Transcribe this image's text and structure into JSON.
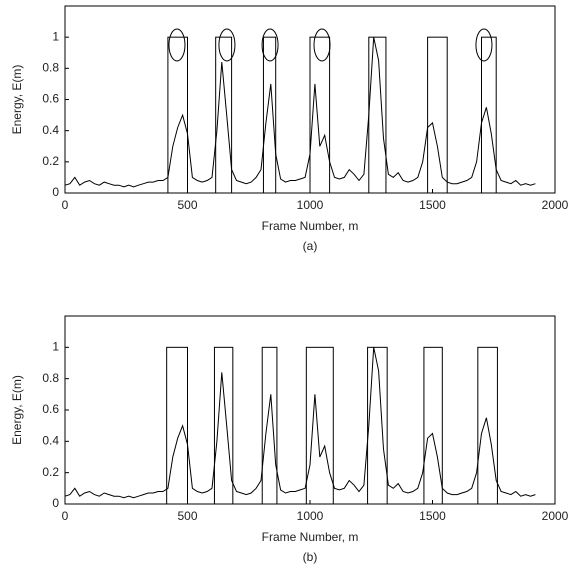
{
  "chart_data": [
    {
      "type": "line",
      "caption": "(a)",
      "xlabel": "Frame Number, m",
      "ylabel": "Energy, E(m)",
      "xlim": [
        0,
        2000
      ],
      "ylim": [
        0,
        1.2
      ],
      "xticks": [
        0,
        500,
        1000,
        1500,
        2000
      ],
      "yticks": [
        0,
        0.2,
        0.4,
        0.6,
        0.8,
        1
      ],
      "series": [
        {
          "color": "#000000",
          "x": [
            0,
            20,
            40,
            60,
            80,
            100,
            120,
            140,
            160,
            180,
            200,
            220,
            240,
            260,
            280,
            300,
            320,
            340,
            360,
            380,
            400,
            420,
            440,
            460,
            480,
            500,
            520,
            540,
            560,
            580,
            600,
            620,
            640,
            660,
            680,
            700,
            720,
            740,
            760,
            780,
            800,
            820,
            840,
            860,
            880,
            900,
            920,
            940,
            960,
            980,
            1000,
            1020,
            1040,
            1060,
            1080,
            1100,
            1120,
            1140,
            1160,
            1180,
            1200,
            1220,
            1240,
            1260,
            1280,
            1300,
            1320,
            1340,
            1360,
            1380,
            1400,
            1420,
            1440,
            1460,
            1480,
            1500,
            1520,
            1540,
            1560,
            1580,
            1600,
            1620,
            1640,
            1660,
            1680,
            1700,
            1720,
            1740,
            1760,
            1780,
            1800,
            1820,
            1840,
            1860,
            1880,
            1900,
            1920
          ],
          "values": [
            0.05,
            0.06,
            0.1,
            0.05,
            0.07,
            0.08,
            0.06,
            0.05,
            0.07,
            0.06,
            0.05,
            0.05,
            0.04,
            0.05,
            0.04,
            0.05,
            0.06,
            0.07,
            0.07,
            0.08,
            0.08,
            0.1,
            0.3,
            0.42,
            0.5,
            0.38,
            0.1,
            0.08,
            0.07,
            0.08,
            0.1,
            0.4,
            0.84,
            0.5,
            0.15,
            0.08,
            0.07,
            0.06,
            0.07,
            0.1,
            0.15,
            0.45,
            0.7,
            0.25,
            0.09,
            0.07,
            0.08,
            0.08,
            0.09,
            0.1,
            0.25,
            0.7,
            0.3,
            0.37,
            0.2,
            0.1,
            0.09,
            0.1,
            0.15,
            0.12,
            0.08,
            0.12,
            0.5,
            1.0,
            0.85,
            0.35,
            0.12,
            0.1,
            0.13,
            0.08,
            0.07,
            0.08,
            0.1,
            0.2,
            0.42,
            0.45,
            0.3,
            0.1,
            0.07,
            0.06,
            0.06,
            0.07,
            0.08,
            0.1,
            0.2,
            0.45,
            0.55,
            0.38,
            0.15,
            0.08,
            0.07,
            0.06,
            0.08,
            0.05,
            0.06,
            0.05,
            0.06
          ]
        }
      ],
      "windows": {
        "starts": [
          420,
          615,
          810,
          1000,
          1240,
          1480,
          1700
        ],
        "ends": [
          500,
          680,
          860,
          1080,
          1310,
          1560,
          1760
        ],
        "heights": [
          1,
          1,
          1,
          1,
          1,
          1,
          1
        ]
      },
      "circles": {
        "x": [
          457,
          661,
          837,
          1049,
          1710
        ],
        "y": [
          0.95,
          0.95,
          0.95,
          0.95,
          0.95
        ]
      }
    },
    {
      "type": "line",
      "caption": "(b)",
      "xlabel": "Frame Number, m",
      "ylabel": "Energy, E(m)",
      "xlim": [
        0,
        2000
      ],
      "ylim": [
        0,
        1.2
      ],
      "xticks": [
        0,
        500,
        1000,
        1500,
        2000
      ],
      "yticks": [
        0,
        0.2,
        0.4,
        0.6,
        0.8,
        1
      ],
      "series": [
        {
          "color": "#000000",
          "x": [
            0,
            20,
            40,
            60,
            80,
            100,
            120,
            140,
            160,
            180,
            200,
            220,
            240,
            260,
            280,
            300,
            320,
            340,
            360,
            380,
            400,
            420,
            440,
            460,
            480,
            500,
            520,
            540,
            560,
            580,
            600,
            620,
            640,
            660,
            680,
            700,
            720,
            740,
            760,
            780,
            800,
            820,
            840,
            860,
            880,
            900,
            920,
            940,
            960,
            980,
            1000,
            1020,
            1040,
            1060,
            1080,
            1100,
            1120,
            1140,
            1160,
            1180,
            1200,
            1220,
            1240,
            1260,
            1280,
            1300,
            1320,
            1340,
            1360,
            1380,
            1400,
            1420,
            1440,
            1460,
            1480,
            1500,
            1520,
            1540,
            1560,
            1580,
            1600,
            1620,
            1640,
            1660,
            1680,
            1700,
            1720,
            1740,
            1760,
            1780,
            1800,
            1820,
            1840,
            1860,
            1880,
            1900,
            1920
          ],
          "values": [
            0.05,
            0.06,
            0.1,
            0.05,
            0.07,
            0.08,
            0.06,
            0.05,
            0.07,
            0.06,
            0.05,
            0.05,
            0.04,
            0.05,
            0.04,
            0.05,
            0.06,
            0.07,
            0.07,
            0.08,
            0.08,
            0.1,
            0.3,
            0.42,
            0.5,
            0.38,
            0.1,
            0.08,
            0.07,
            0.08,
            0.1,
            0.4,
            0.84,
            0.5,
            0.15,
            0.08,
            0.07,
            0.06,
            0.07,
            0.1,
            0.15,
            0.45,
            0.7,
            0.25,
            0.09,
            0.07,
            0.08,
            0.08,
            0.09,
            0.1,
            0.25,
            0.7,
            0.3,
            0.37,
            0.2,
            0.1,
            0.09,
            0.1,
            0.15,
            0.12,
            0.08,
            0.12,
            0.5,
            1.0,
            0.85,
            0.35,
            0.12,
            0.1,
            0.13,
            0.08,
            0.07,
            0.08,
            0.1,
            0.2,
            0.42,
            0.45,
            0.3,
            0.1,
            0.07,
            0.06,
            0.06,
            0.07,
            0.08,
            0.1,
            0.2,
            0.45,
            0.55,
            0.38,
            0.15,
            0.08,
            0.07,
            0.06,
            0.08,
            0.05,
            0.06,
            0.05,
            0.06
          ]
        }
      ],
      "windows": {
        "starts": [
          415,
          610,
          805,
          985,
          1235,
          1465,
          1685
        ],
        "ends": [
          500,
          685,
          865,
          1095,
          1315,
          1540,
          1765
        ],
        "heights": [
          1,
          1,
          1,
          1,
          1,
          1,
          1
        ]
      }
    }
  ]
}
